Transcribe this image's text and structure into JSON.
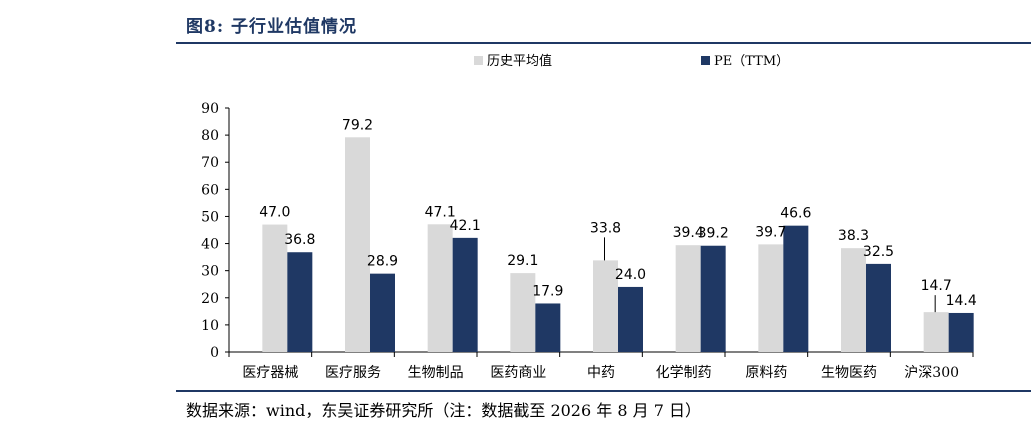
{
  "figure_title": "图8:  子行业估值情况",
  "source_note": "数据来源：wind，东吴证券研究所（注：数据截至 2026 年 8 月 7 日）",
  "colors": {
    "hist": "#d9d9d9",
    "pe": "#1f3864",
    "rule": "#1f3864",
    "leader": "#000000"
  },
  "chart_data": {
    "type": "bar",
    "title": "",
    "xlabel": "",
    "ylabel": "",
    "ylim": [
      0,
      90
    ],
    "yticks": [
      0,
      10,
      20,
      30,
      40,
      50,
      60,
      70,
      80,
      90
    ],
    "legend_position": "top",
    "grid": false,
    "categories": [
      "医疗器械",
      "医疗服务",
      "生物制品",
      "医药商业",
      "中药",
      "化学制药",
      "原料药",
      "生物医药",
      "沪深300"
    ],
    "series": [
      {
        "name": "历史平均值",
        "values": [
          47.0,
          79.2,
          47.1,
          29.1,
          33.8,
          39.4,
          39.7,
          38.3,
          14.7
        ]
      },
      {
        "name": "PE（TTM）",
        "values": [
          36.8,
          28.9,
          42.1,
          17.9,
          24.0,
          39.2,
          46.6,
          32.5,
          14.4
        ]
      }
    ],
    "value_labels": [
      [
        "47.0",
        "79.2",
        "47.1",
        "29.1",
        "33.8",
        "39.4",
        "39.7",
        "38.3",
        "14.7"
      ],
      [
        "36.8",
        "28.9",
        "42.1",
        "17.9",
        "24.0",
        "39.2",
        "46.6",
        "32.5",
        "14.4"
      ]
    ]
  }
}
